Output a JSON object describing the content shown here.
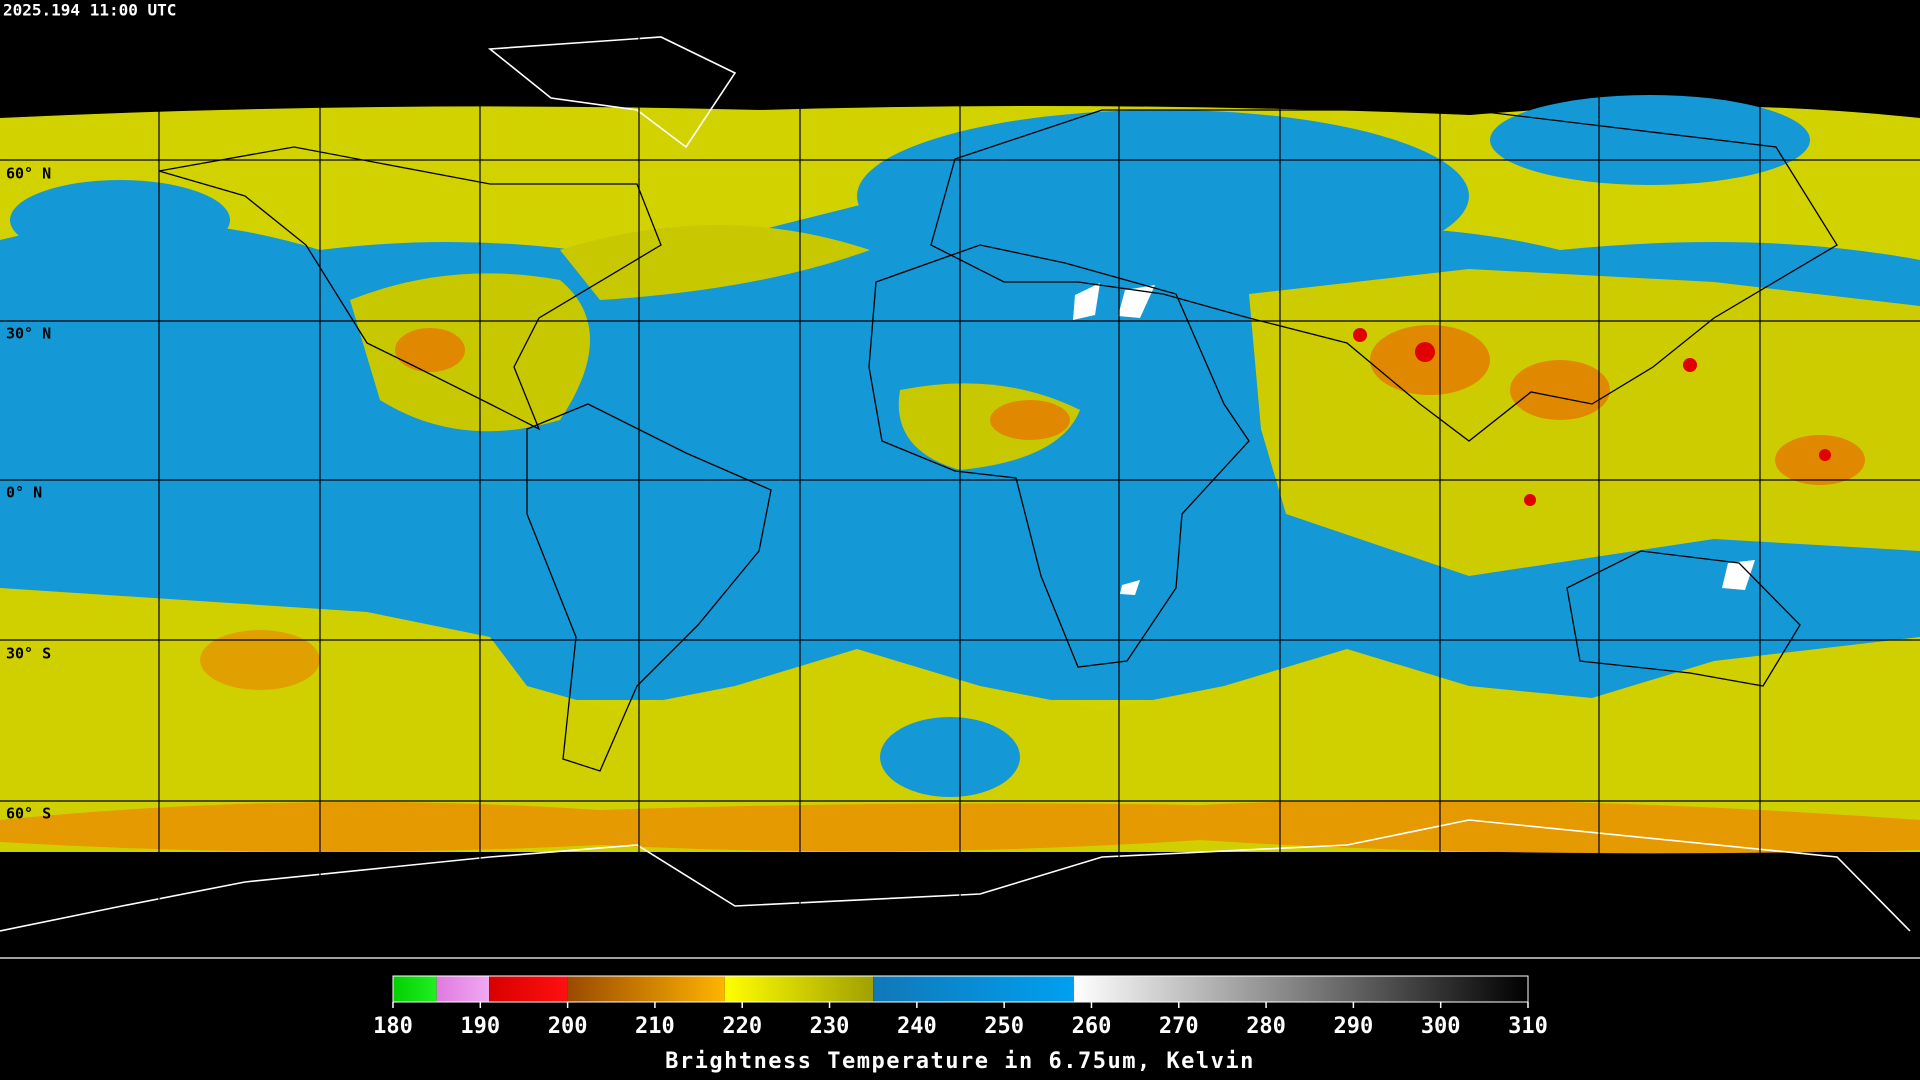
{
  "header": {
    "timestamp": "2025.194 11:00 UTC"
  },
  "map": {
    "latitude_labels": [
      "60° N",
      "30° N",
      "0° N",
      "30° S",
      "60° S"
    ]
  },
  "colorbar": {
    "title": "Brightness Temperature in 6.75um, Kelvin",
    "range": [
      180,
      310
    ],
    "ticks": [
      180,
      190,
      200,
      210,
      220,
      230,
      240,
      250,
      260,
      270,
      280,
      290,
      300,
      310
    ],
    "segments": [
      {
        "from": 180,
        "to": 185,
        "colors": [
          "#00d000",
          "#22ee22"
        ]
      },
      {
        "from": 185,
        "to": 191,
        "colors": [
          "#e07ae0",
          "#f0a8f0"
        ]
      },
      {
        "from": 191,
        "to": 200,
        "colors": [
          "#d80000",
          "#ff1010"
        ]
      },
      {
        "from": 200,
        "to": 218,
        "colors": [
          "#9a4a00",
          "#ffb400"
        ]
      },
      {
        "from": 218,
        "to": 235,
        "colors": [
          "#ffff00",
          "#a0a000"
        ]
      },
      {
        "from": 235,
        "to": 258,
        "colors": [
          "#1078b8",
          "#00a0f0"
        ]
      },
      {
        "from": 258,
        "to": 310,
        "colors": [
          "#ffffff",
          "#000000"
        ]
      }
    ]
  }
}
